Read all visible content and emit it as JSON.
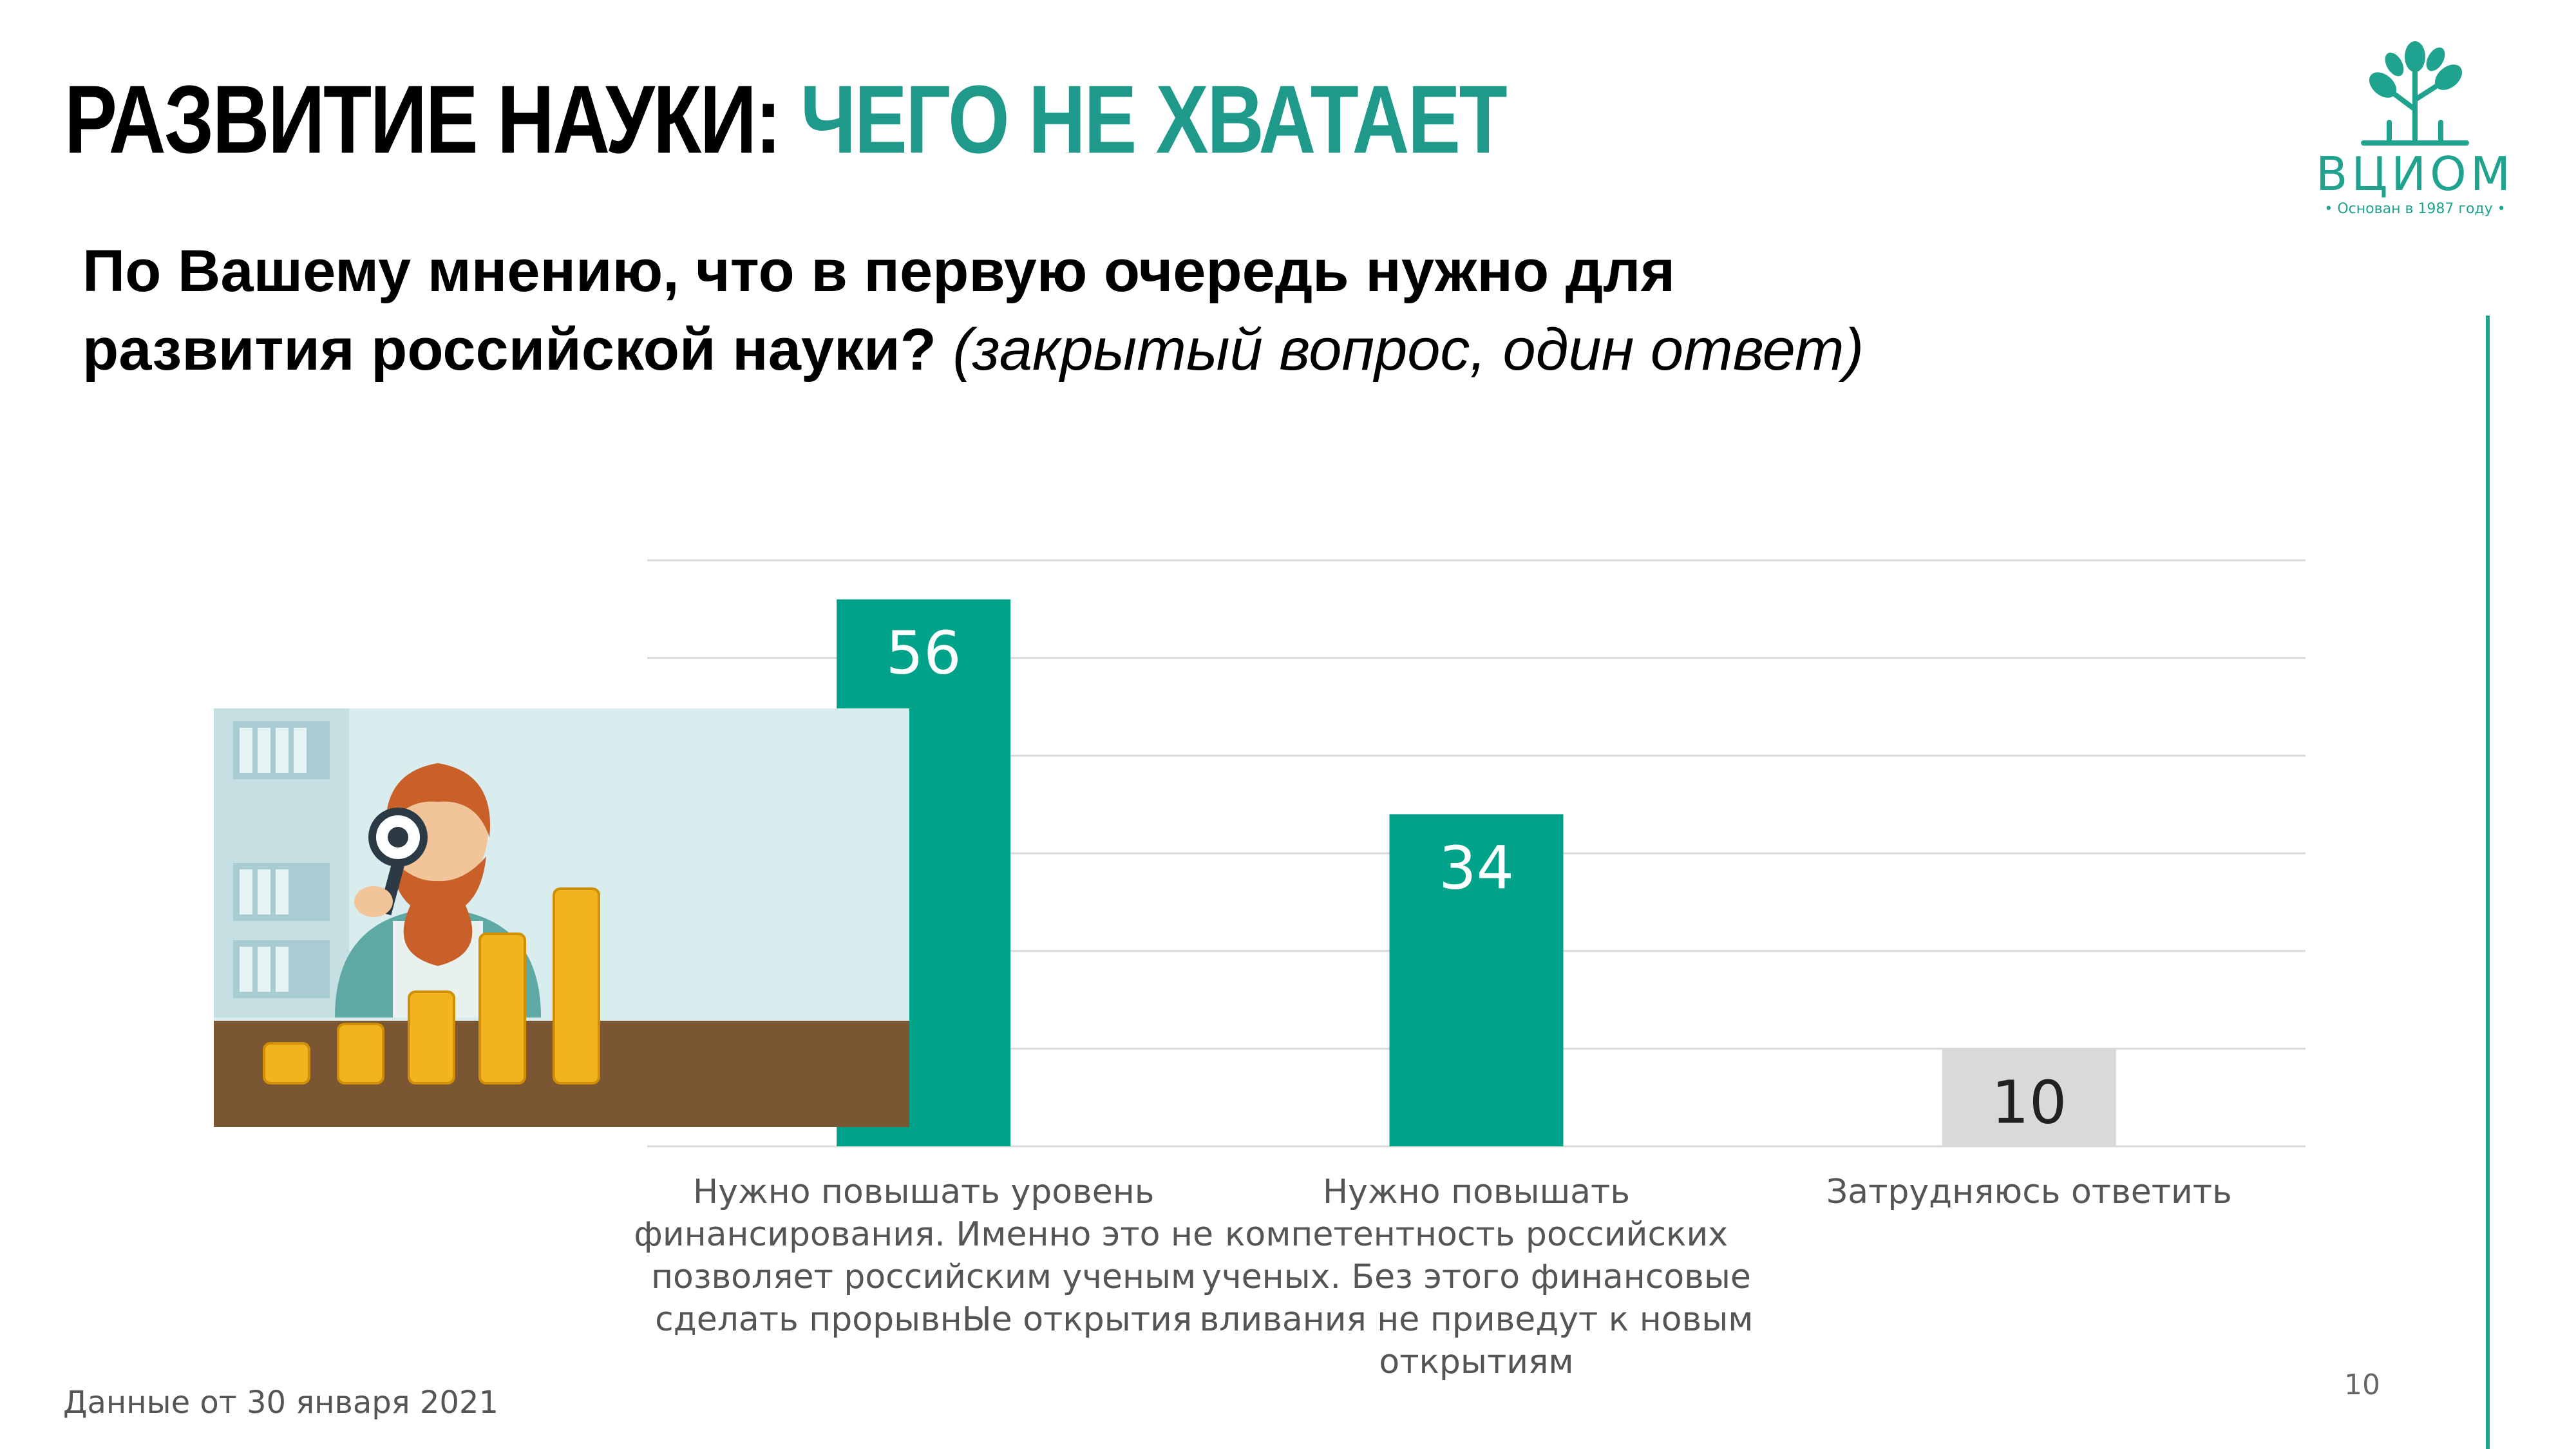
{
  "title": {
    "part1": "РАЗВИТИЕ НАУКИ:",
    "part2": "ЧЕГО НЕ ХВАТАЕТ"
  },
  "question": {
    "main": "По Вашему мнению, что в первую очередь нужно для развития российской науки?",
    "note": "(закрытый вопрос, один ответ)"
  },
  "logo": {
    "name": "ВЦИОМ",
    "subtitle": "• Основан в 1987 году •",
    "icon": "tree-icon"
  },
  "footnote": "Данные от 30 января 2021",
  "page_number": "10",
  "colors": {
    "accent": "#00a389",
    "neutral_bar": "#d9d9d9",
    "title_accent": "#1f9a8a"
  },
  "illustration": {
    "icon": "scientist-with-magnifier-and-coins-illustration"
  },
  "chart_data": {
    "type": "bar",
    "categories": [
      "Нужно повышать уровень финансирования. Именно это не позволяет российским ученым сделать прорывнЫе открытия",
      "Нужно повышать компетентность российских ученых. Без этого финансовые вливания не приведут к новым открытиям",
      "Затрудняюсь ответить"
    ],
    "values": [
      56,
      34,
      10
    ],
    "data_labels": [
      "56",
      "34",
      "10"
    ],
    "bar_colors": [
      "#00a389",
      "#00a389",
      "#d9d9d9"
    ],
    "label_colors": [
      "#ffffff",
      "#ffffff",
      "#222222"
    ],
    "ylim": [
      0,
      60
    ],
    "grid": true,
    "legend": "none"
  }
}
